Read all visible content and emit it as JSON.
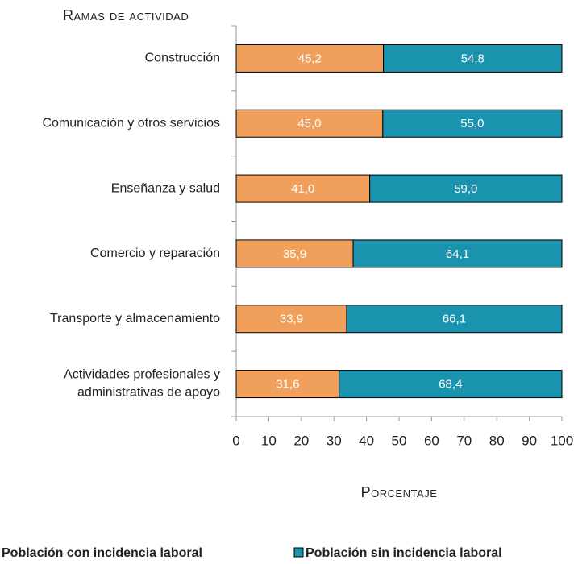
{
  "chart_data": {
    "type": "stacked_bar_horizontal",
    "ylabel": "Ramas de actividad",
    "xlabel": "Porcentaje",
    "categories": [
      "Construcción",
      "Comunicación y otros servicios",
      "Enseñanza y salud",
      "Comercio y reparación",
      "Transporte y almacenamiento",
      "Actividades profesionales y\nadministrativas de apoyo"
    ],
    "series": [
      {
        "name": "Población con incidencia laboral",
        "color": "#F0A05A",
        "values": [
          45.2,
          45.0,
          41.0,
          35.9,
          33.9,
          31.6
        ],
        "value_labels": [
          "45,2",
          "45,0",
          "41,0",
          "35,9",
          "33,9",
          "31,6"
        ]
      },
      {
        "name": "Población sin incidencia laboral",
        "color": "#1A93AE",
        "values": [
          54.8,
          55.0,
          59.0,
          64.1,
          66.1,
          68.4
        ],
        "value_labels": [
          "54,8",
          "55,0",
          "59,0",
          "64,1",
          "66,1",
          "68,4"
        ]
      }
    ],
    "xlim": [
      0,
      100
    ],
    "xticks": [
      0,
      10,
      20,
      30,
      40,
      50,
      60,
      70,
      80,
      90,
      100
    ],
    "legend": "bottom"
  }
}
